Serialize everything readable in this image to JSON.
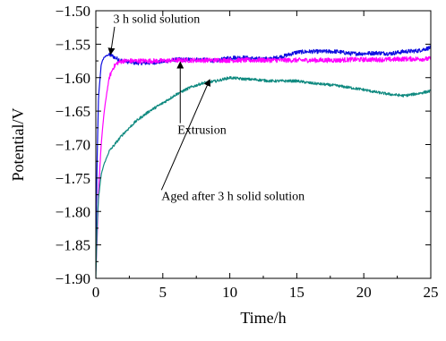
{
  "chart_data": {
    "type": "line",
    "xlabel": "Time/h",
    "ylabel": "Potential/V",
    "xlim": [
      0,
      25
    ],
    "ylim": [
      -1.9,
      -1.5
    ],
    "x_ticks": [
      "0",
      "5",
      "10",
      "15",
      "20",
      "25"
    ],
    "y_ticks": [
      "-1.50",
      "-1.55",
      "-1.60",
      "-1.65",
      "-1.70",
      "-1.75",
      "-1.80",
      "-1.85",
      "-1.90"
    ],
    "grid": false,
    "series": [
      {
        "name": "3 h solid solution",
        "color": "#1010e0",
        "noise": 0.006,
        "x": [
          0,
          0.1,
          0.2,
          0.4,
          0.6,
          0.9,
          1.2,
          1.5,
          2,
          3,
          4,
          5,
          6,
          7,
          8,
          9,
          10,
          11,
          12,
          13,
          14,
          15,
          16,
          17,
          18,
          19,
          20,
          21,
          22,
          23,
          24,
          25
        ],
        "y": [
          -1.86,
          -1.72,
          -1.63,
          -1.58,
          -1.57,
          -1.566,
          -1.567,
          -1.571,
          -1.575,
          -1.578,
          -1.578,
          -1.576,
          -1.573,
          -1.573,
          -1.573,
          -1.575,
          -1.57,
          -1.57,
          -1.572,
          -1.572,
          -1.568,
          -1.562,
          -1.561,
          -1.561,
          -1.561,
          -1.564,
          -1.564,
          -1.563,
          -1.564,
          -1.561,
          -1.56,
          -1.555
        ]
      },
      {
        "name": "Extrusion",
        "color": "#ff00ff",
        "noise": 0.007,
        "x": [
          0,
          0.1,
          0.2,
          0.4,
          0.6,
          0.8,
          1.0,
          1.3,
          1.6,
          2,
          2.5,
          3,
          4,
          5,
          6,
          7,
          8,
          9,
          10,
          11,
          12,
          13,
          14,
          15,
          16,
          17,
          18,
          19,
          20,
          21,
          22,
          23,
          24,
          25
        ],
        "y": [
          -1.89,
          -1.84,
          -1.77,
          -1.7,
          -1.655,
          -1.625,
          -1.6,
          -1.585,
          -1.578,
          -1.575,
          -1.575,
          -1.575,
          -1.575,
          -1.575,
          -1.574,
          -1.574,
          -1.574,
          -1.574,
          -1.574,
          -1.574,
          -1.574,
          -1.574,
          -1.574,
          -1.574,
          -1.574,
          -1.574,
          -1.574,
          -1.573,
          -1.573,
          -1.573,
          -1.573,
          -1.572,
          -1.572,
          -1.572
        ]
      },
      {
        "name": "Aged after 3 h solid solution",
        "color": "#108a80",
        "noise": 0.004,
        "x": [
          0,
          0.1,
          0.2,
          0.4,
          0.6,
          1,
          2,
          3,
          4,
          5,
          6,
          7,
          8,
          9,
          10,
          11,
          12,
          13,
          14,
          15,
          16,
          17,
          18,
          19,
          20,
          21,
          22,
          23,
          24,
          25
        ],
        "y": [
          -1.9,
          -1.82,
          -1.78,
          -1.745,
          -1.73,
          -1.71,
          -1.685,
          -1.665,
          -1.65,
          -1.638,
          -1.625,
          -1.615,
          -1.608,
          -1.605,
          -1.6,
          -1.602,
          -1.603,
          -1.605,
          -1.605,
          -1.605,
          -1.608,
          -1.61,
          -1.612,
          -1.615,
          -1.618,
          -1.622,
          -1.625,
          -1.627,
          -1.624,
          -1.62
        ]
      }
    ],
    "annotations": [
      {
        "text": "3 h solid solution",
        "tx": 1.3,
        "ty": -1.518,
        "ax": 1.4,
        "ay": -1.524,
        "bx": 1.1,
        "by": -1.565
      },
      {
        "text": "Extrusion",
        "tx": 6.1,
        "ty": -1.684,
        "ax": 6.3,
        "ay": -1.668,
        "bx": 6.3,
        "by": -1.577
      },
      {
        "text": "Aged after 3 h solid solution",
        "tx": 4.9,
        "ty": -1.783,
        "ax": 4.9,
        "ay": -1.768,
        "bx": 8.5,
        "by": -1.603
      }
    ]
  }
}
